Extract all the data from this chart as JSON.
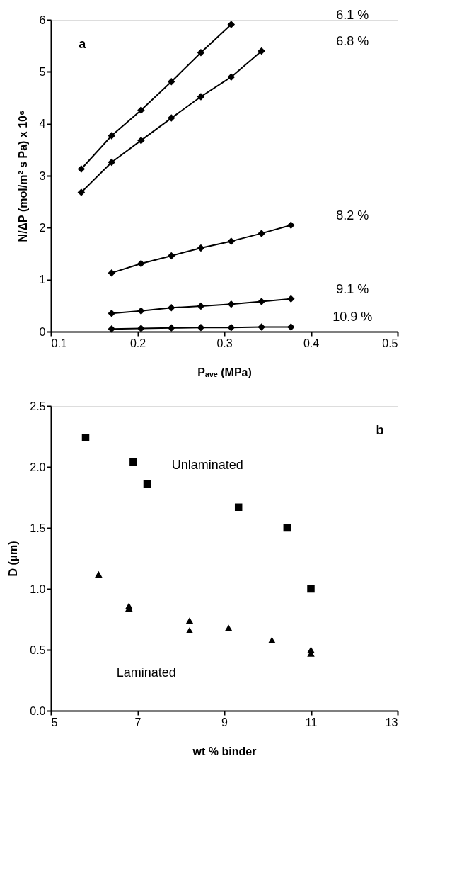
{
  "chart_data": [
    {
      "type": "line",
      "xlabel": "Pₐᵥₑ (MPa)",
      "ylabel": "N/ΔP (mol/m² s Pa) x 10⁶",
      "xlim": [
        0.1,
        0.5
      ],
      "xticks": [
        0.1,
        0.2,
        0.3,
        0.4,
        0.5
      ],
      "ylim": [
        0,
        6
      ],
      "yticks": [
        0,
        1,
        2,
        3,
        4,
        5,
        6
      ],
      "grid": false,
      "legend": false,
      "marker": "diamond",
      "line_style": "solid",
      "series": [
        {
          "name": "6.1 %",
          "color": "#000000",
          "x": [
            0.135,
            0.17,
            0.204,
            0.239,
            0.273,
            0.308
          ],
          "values": [
            3.13,
            3.77,
            4.26,
            4.81,
            5.37,
            5.91
          ]
        },
        {
          "name": "6.8 %",
          "color": "#000000",
          "x": [
            0.135,
            0.17,
            0.204,
            0.239,
            0.273,
            0.308,
            0.343
          ],
          "values": [
            2.68,
            3.26,
            3.68,
            4.11,
            4.52,
            4.9,
            5.4
          ]
        },
        {
          "name": "8.2 %",
          "color": "#000000",
          "x": [
            0.17,
            0.204,
            0.239,
            0.273,
            0.308,
            0.343,
            0.377
          ],
          "values": [
            1.13,
            1.31,
            1.46,
            1.61,
            1.74,
            1.89,
            2.05
          ]
        },
        {
          "name": "9.1 %",
          "color": "#000000",
          "x": [
            0.17,
            0.204,
            0.239,
            0.273,
            0.308,
            0.343,
            0.377
          ],
          "values": [
            0.35,
            0.4,
            0.46,
            0.49,
            0.53,
            0.58,
            0.63
          ]
        },
        {
          "name": "10.9 %",
          "color": "#000000",
          "x": [
            0.17,
            0.204,
            0.239,
            0.273,
            0.308,
            0.343,
            0.377
          ],
          "values": [
            0.05,
            0.06,
            0.07,
            0.08,
            0.08,
            0.09,
            0.09
          ]
        }
      ],
      "annotations": [
        "a"
      ]
    },
    {
      "type": "scatter",
      "xlabel": "wt % binder",
      "ylabel": "D (µm)",
      "xlim": [
        5,
        13
      ],
      "xticks": [
        5,
        7,
        9,
        11,
        13
      ],
      "ylim": [
        0,
        2.5
      ],
      "yticks": [
        {
          "value": 0,
          "label": "0.0"
        },
        0.5,
        {
          "value": 1,
          "label": "1.0"
        },
        1.5,
        {
          "value": 2,
          "label": "2.0"
        },
        2.5
      ],
      "grid": false,
      "legend": false,
      "series": [
        {
          "name": "Unlaminated",
          "color": "#000000",
          "marker": "square",
          "x": [
            5.8,
            6.9,
            7.22,
            9.33,
            10.45,
            11.0
          ],
          "values": [
            2.24,
            2.04,
            1.86,
            1.67,
            1.5,
            1.0
          ]
        },
        {
          "name": "Laminated",
          "color": "#000000",
          "marker": "triangle",
          "x": [
            6.1,
            6.8,
            6.8,
            8.2,
            8.2,
            9.1,
            10.1,
            11.0,
            11.0
          ],
          "values": [
            1.12,
            0.86,
            0.84,
            0.74,
            0.66,
            0.68,
            0.58,
            0.5,
            0.47
          ]
        }
      ],
      "annotations": [
        "b"
      ]
    }
  ]
}
